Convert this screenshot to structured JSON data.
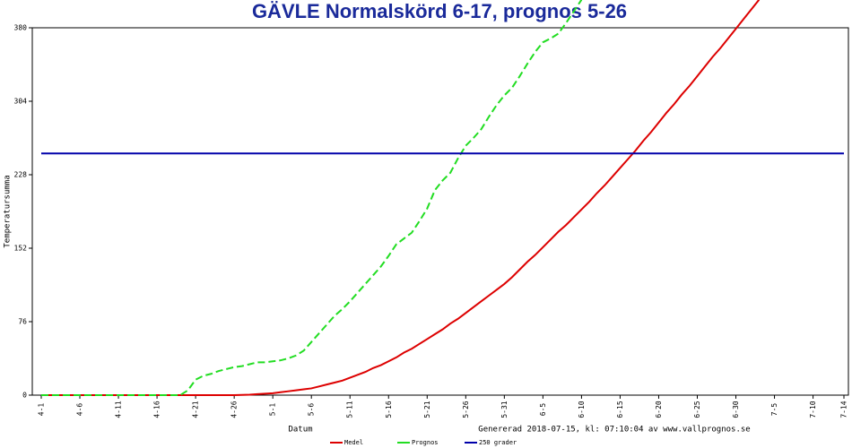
{
  "chart_data": {
    "type": "line",
    "title": "GÄVLE Normalskörd 6-17, prognos 5-26",
    "ylabel": "Temperatursumma",
    "xlabel": "Datum",
    "footer": "Genererad 2018-07-15, kl: 07:10:04 av www.vallprognos.se",
    "ylim": [
      0,
      380
    ],
    "yticks": [
      0,
      76,
      152,
      228,
      304,
      380
    ],
    "categories": [
      "4-1",
      null,
      null,
      null,
      null,
      "4-6",
      null,
      null,
      null,
      null,
      "4-11",
      null,
      null,
      null,
      null,
      "4-16",
      null,
      null,
      null,
      null,
      "4-21",
      null,
      null,
      null,
      null,
      "4-26",
      null,
      null,
      null,
      null,
      "5-1",
      null,
      null,
      null,
      null,
      "5-6",
      null,
      null,
      null,
      null,
      "5-11",
      null,
      null,
      null,
      null,
      "5-16",
      null,
      null,
      null,
      null,
      "5-21",
      null,
      null,
      null,
      null,
      "5-26",
      null,
      null,
      null,
      null,
      "5-31",
      null,
      null,
      null,
      null,
      "6-5",
      null,
      null,
      null,
      null,
      "6-10",
      null,
      null,
      null,
      null,
      "6-15",
      null,
      null,
      null,
      null,
      "6-20",
      null,
      null,
      null,
      null,
      "6-25",
      null,
      null,
      null,
      null,
      "6-30",
      null,
      null,
      null,
      null,
      "7-5",
      null,
      null,
      null,
      null,
      "7-10",
      null,
      null,
      null,
      "7-14"
    ],
    "series": [
      {
        "name": "Medel",
        "color": "#dd0000",
        "dash": false,
        "values": [
          0,
          0,
          0,
          0,
          0,
          0,
          0,
          0,
          0,
          0,
          0,
          0,
          0,
          0,
          0,
          0,
          0,
          0,
          0,
          0,
          0,
          0,
          0,
          0,
          0,
          0,
          0.2,
          0.5,
          1,
          1.5,
          2,
          3,
          4,
          5,
          6,
          7,
          9,
          11,
          13,
          15,
          18,
          21,
          24,
          28,
          31,
          35,
          39,
          44,
          48,
          53,
          58,
          63,
          68,
          74,
          79,
          85,
          91,
          97,
          103,
          109,
          115,
          122,
          130,
          138,
          145,
          153,
          161,
          169,
          176,
          184,
          192,
          200,
          209,
          217,
          226,
          235,
          244,
          253,
          263,
          272,
          282,
          292,
          301,
          311,
          320,
          330,
          340,
          350,
          359,
          369,
          379,
          389,
          399,
          409,
          null,
          null,
          null,
          null,
          null,
          null,
          null,
          null,
          null,
          null,
          null
        ]
      },
      {
        "name": "Prognos",
        "color": "#22dd22",
        "dash": true,
        "values": [
          0,
          0,
          0,
          0,
          0,
          0,
          0,
          0,
          0,
          0,
          0,
          0,
          0,
          0,
          0,
          0,
          0,
          0,
          0,
          5,
          16,
          20,
          22,
          25,
          27,
          29,
          30,
          32,
          34,
          34,
          35,
          36,
          38,
          41,
          46,
          55,
          64,
          73,
          82,
          89,
          97,
          106,
          115,
          124,
          133,
          144,
          156,
          162,
          168,
          180,
          193,
          212,
          222,
          230,
          245,
          258,
          266,
          275,
          288,
          300,
          310,
          318,
          330,
          343,
          355,
          365,
          369,
          374,
          385,
          397,
          409,
          null,
          null,
          null,
          null,
          null,
          null,
          null,
          null,
          null,
          null,
          null,
          null,
          null,
          null,
          null,
          null,
          null,
          null,
          null,
          null,
          null,
          null,
          null,
          null,
          null,
          null,
          null,
          null,
          null,
          null,
          null,
          null,
          null,
          null
        ]
      },
      {
        "name": "250 grader",
        "color": "#0000aa",
        "dash": false,
        "values": [
          250,
          250,
          250,
          250,
          250,
          250,
          250,
          250,
          250,
          250,
          250,
          250,
          250,
          250,
          250,
          250,
          250,
          250,
          250,
          250,
          250,
          250,
          250,
          250,
          250,
          250,
          250,
          250,
          250,
          250,
          250,
          250,
          250,
          250,
          250,
          250,
          250,
          250,
          250,
          250,
          250,
          250,
          250,
          250,
          250,
          250,
          250,
          250,
          250,
          250,
          250,
          250,
          250,
          250,
          250,
          250,
          250,
          250,
          250,
          250,
          250,
          250,
          250,
          250,
          250,
          250,
          250,
          250,
          250,
          250,
          250,
          250,
          250,
          250,
          250,
          250,
          250,
          250,
          250,
          250,
          250,
          250,
          250,
          250,
          250,
          250,
          250,
          250,
          250,
          250,
          250,
          250,
          250,
          250,
          250,
          250,
          250,
          250,
          250,
          250,
          250,
          250,
          250,
          250,
          250
        ]
      }
    ]
  }
}
